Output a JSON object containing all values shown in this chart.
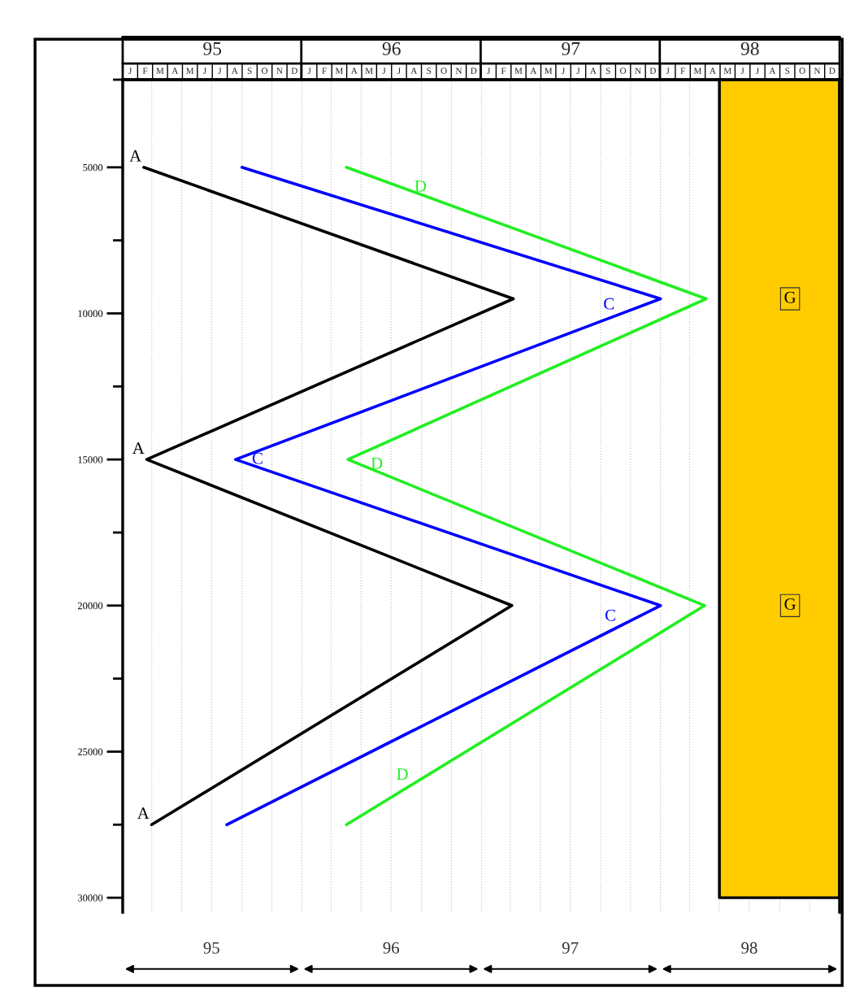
{
  "chart_data": {
    "type": "line",
    "series": [
      {
        "color": "#000000",
        "x": [
          "1995-02-13",
          "1997-03-07",
          "1995-02-19",
          "1997-03-04",
          "1995-03-01"
        ],
        "values": [
          5000,
          9500,
          15000,
          20000,
          27500
        ]
      },
      {
        "color": "#0000ff",
        "x": [
          "1995-09-01",
          "1998-01-01",
          "1995-08-19",
          "1998-01-01",
          "1995-08-01"
        ],
        "values": [
          5000,
          9500,
          15000,
          20000,
          27500
        ]
      },
      {
        "color": "#22ee22",
        "x": [
          "1996-04-01",
          "1998-04-04",
          "1996-04-04",
          "1998-04-01",
          "1996-04-01"
        ],
        "values": [
          5000,
          9500,
          15000,
          20000,
          27500
        ]
      },
      {
        "type": "area",
        "color": "#ffcc00",
        "x": [
          "1998-05-01",
          "1999-01-01"
        ],
        "values": [
          30000,
          30000
        ]
      }
    ],
    "xlim": [
      "1995-01-01",
      "1999-01-01"
    ],
    "ylim": [
      30500,
      2000
    ],
    "xticks": [
      {
        "value": "1995-01-01",
        "label": null
      },
      {
        "value": "1995-03-01",
        "label": null
      },
      {
        "value": "1995-05-01",
        "label": null
      },
      {
        "value": "1995-07-01",
        "label": "95"
      },
      {
        "value": "1995-09-01",
        "label": null
      },
      {
        "value": "1995-11-01",
        "label": null
      },
      {
        "value": "1996-01-01",
        "label": null
      },
      {
        "value": "1996-03-01",
        "label": null
      },
      {
        "value": "1996-05-01",
        "label": null
      },
      {
        "value": "1996-07-01",
        "label": "96"
      },
      {
        "value": "1996-09-01",
        "label": null
      },
      {
        "value": "1996-11-01",
        "label": null
      },
      {
        "value": "1997-01-01",
        "label": null
      },
      {
        "value": "1997-03-01",
        "label": null
      },
      {
        "value": "1997-05-01",
        "label": null
      },
      {
        "value": "1997-07-01",
        "label": "97"
      },
      {
        "value": "1997-09-01",
        "label": null
      },
      {
        "value": "1997-11-01",
        "label": null
      },
      {
        "value": "1998-01-01",
        "label": null
      },
      {
        "value": "1998-03-01",
        "label": null
      },
      {
        "value": "1998-05-01",
        "label": null
      },
      {
        "value": "1998-07-01",
        "label": "98"
      },
      {
        "value": "1998-09-01",
        "label": null
      },
      {
        "value": "1998-11-01",
        "label": null
      },
      {
        "value": "1999-01-01",
        "label": null
      }
    ],
    "yticks": [
      {
        "value": 2000,
        "label": null
      },
      5000,
      {
        "value": 7500,
        "label": null
      },
      10000,
      {
        "value": 12500,
        "label": null
      },
      15000,
      {
        "value": 17500,
        "label": null
      },
      20000,
      {
        "value": 22500,
        "label": null
      },
      25000,
      {
        "value": 27500,
        "label": null
      },
      30000
    ],
    "grid": "x",
    "annotations": [
      "95",
      "96",
      "97",
      "98",
      "J",
      "F",
      "M",
      "A",
      "M",
      "J",
      "J",
      "A",
      "S",
      "O",
      "N",
      "D",
      "J",
      "F",
      "M",
      "A",
      "M",
      "J",
      "J",
      "A",
      "S",
      "O",
      "N",
      "D",
      "J",
      "F",
      "M",
      "A",
      "M",
      "J",
      "J",
      "A",
      "S",
      "O",
      "N",
      "D",
      "J",
      "F",
      "M",
      "A",
      "M",
      "J",
      "J",
      "A",
      "S",
      "O",
      "N",
      "D",
      {
        "text": "A",
        "x": "1995-02-13",
        "y": 5000
      },
      {
        "text": "A",
        "x": "1995-02-19",
        "y": 15000
      },
      {
        "text": "A",
        "x": "1995-03-01",
        "y": 27500
      },
      {
        "text": "C",
        "x": "1997-10-04",
        "y": 10060
      },
      {
        "text": "C",
        "x": "1995-10-19",
        "y": 15350
      },
      {
        "text": "C",
        "x": "1997-10-07",
        "y": 20720
      },
      {
        "text": "D",
        "x": "1996-09-16",
        "y": 6030
      },
      {
        "text": "D",
        "x": "1996-06-19",
        "y": 15520
      },
      {
        "text": "D",
        "x": "1996-08-10",
        "y": 26160
      },
      {
        "text": "G",
        "x": "1998-09-22",
        "y": 9500
      },
      {
        "text": "G",
        "x": "1998-09-22",
        "y": 20000
      }
    ]
  }
}
